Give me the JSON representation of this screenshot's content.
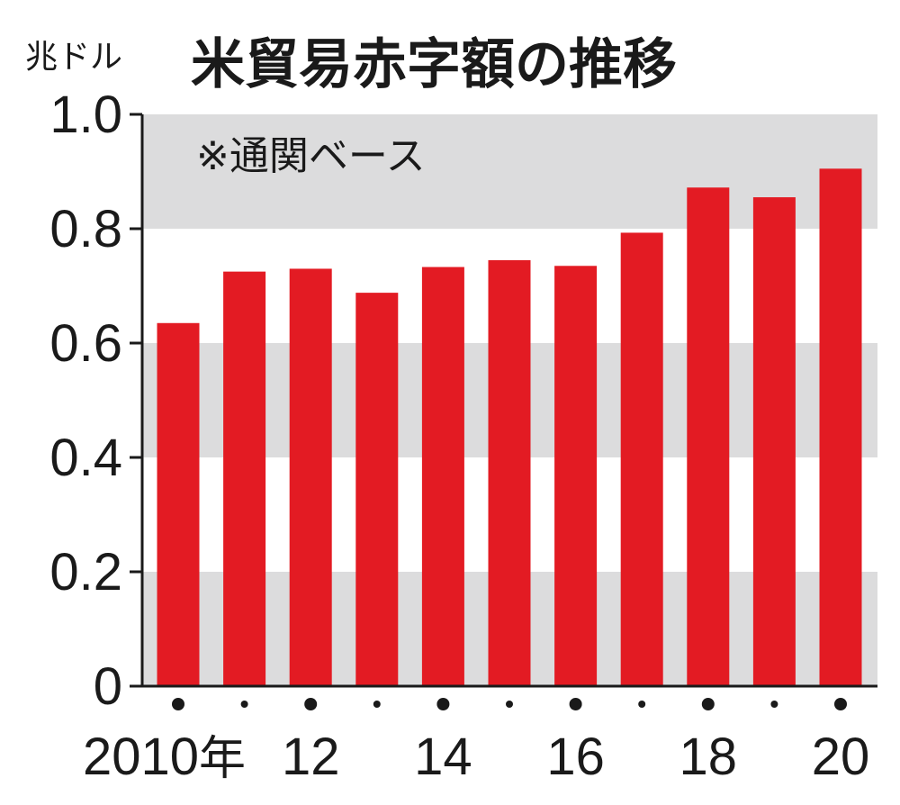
{
  "chart_data": {
    "type": "bar",
    "title": "米貿易赤字額の推移",
    "unit_label": "兆ドル",
    "note": "※通関ベース",
    "categories": [
      "2010",
      "2011",
      "2012",
      "2013",
      "2014",
      "2015",
      "2016",
      "2017",
      "2018",
      "2019",
      "2020"
    ],
    "values": [
      0.635,
      0.725,
      0.73,
      0.688,
      0.733,
      0.745,
      0.735,
      0.793,
      0.872,
      0.855,
      0.905
    ],
    "ylim": [
      0,
      1.0
    ],
    "y_ticks": [
      "0",
      "0.2",
      "0.4",
      "0.6",
      "0.8",
      "1.0"
    ],
    "x_tick_labels": [
      {
        "year": "2010",
        "text": "2010",
        "suffix": "年"
      },
      {
        "year": "2012",
        "text": "12",
        "suffix": ""
      },
      {
        "year": "2014",
        "text": "14",
        "suffix": ""
      },
      {
        "year": "2016",
        "text": "16",
        "suffix": ""
      },
      {
        "year": "2018",
        "text": "18",
        "suffix": ""
      },
      {
        "year": "2020",
        "text": "20",
        "suffix": ""
      }
    ],
    "grid": "alternating horizontal bands",
    "colors": {
      "bar": "#e31b23",
      "band": "#dcdcdd",
      "axis": "#1a1a1a",
      "text": "#1a1a1a"
    }
  }
}
